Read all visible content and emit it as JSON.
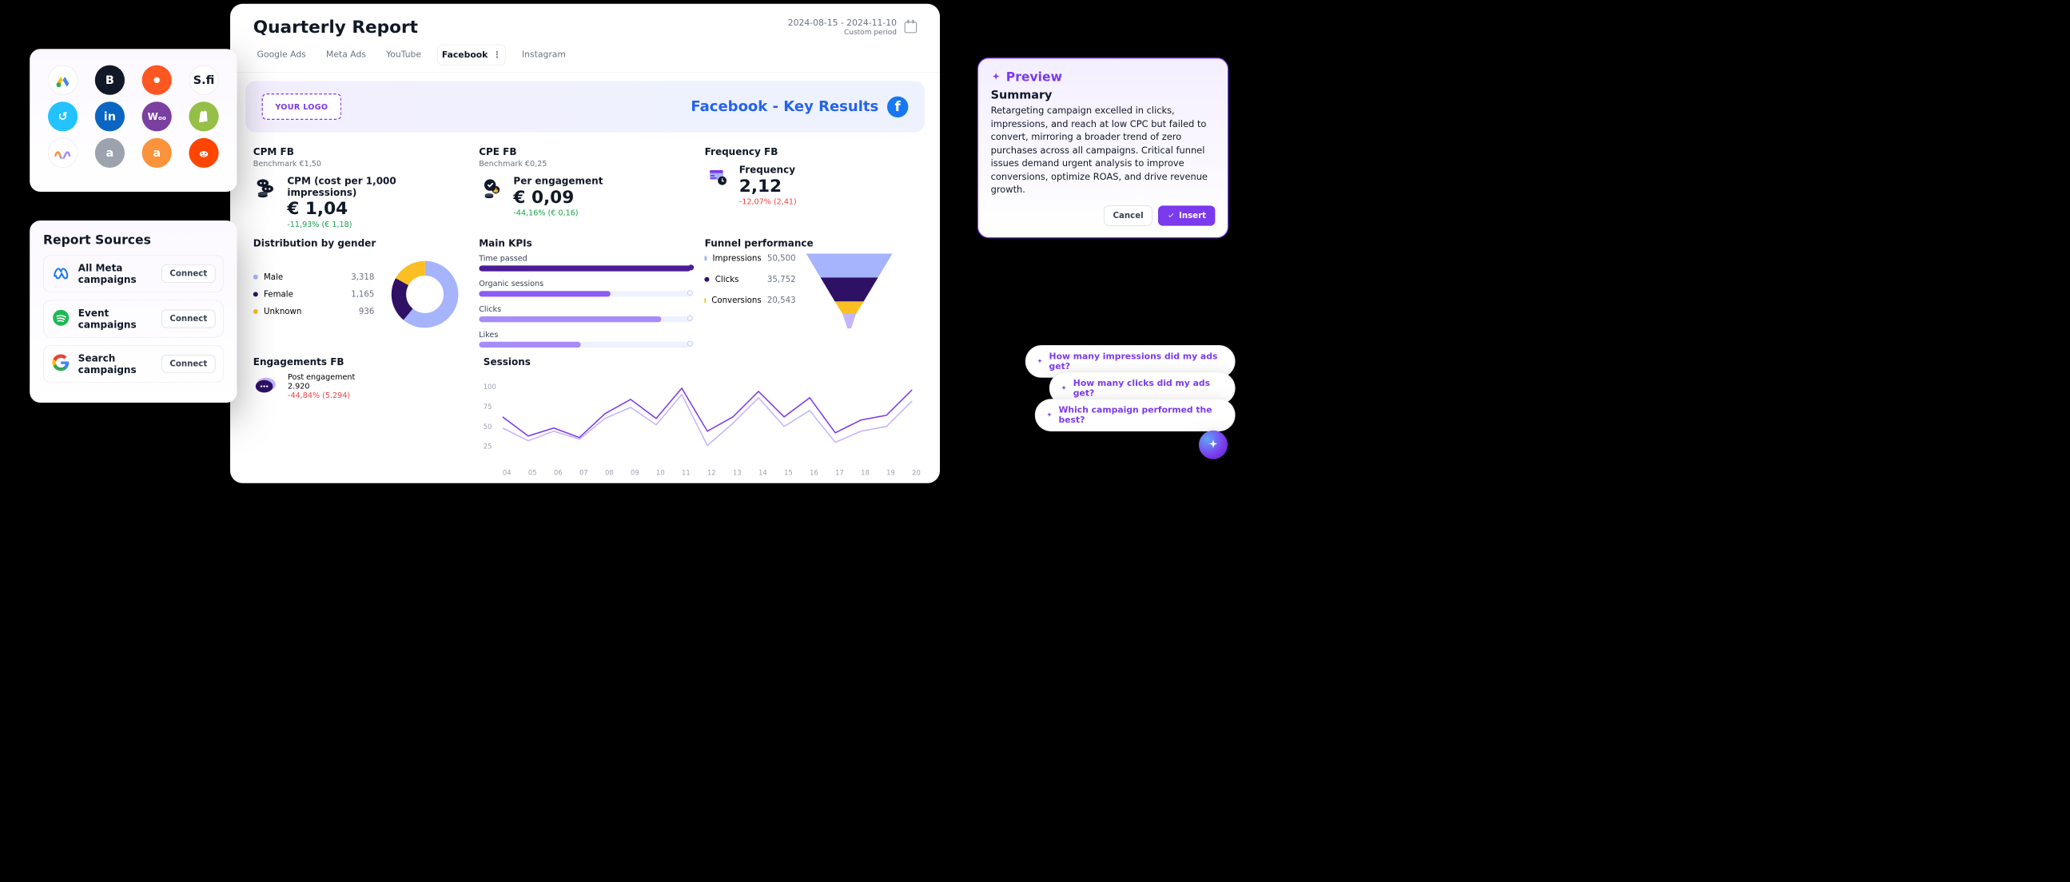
{
  "main": {
    "title": "Quarterly Report",
    "date_range": "2024-08-15 - 2024-11-10",
    "period_label": "Custom period",
    "tabs": [
      {
        "label": "Google Ads",
        "active": false
      },
      {
        "label": "Meta Ads",
        "active": false
      },
      {
        "label": "YouTube",
        "active": false
      },
      {
        "label": "Facebook",
        "active": true
      },
      {
        "label": "Instagram",
        "active": false
      }
    ],
    "hero": {
      "logo_placeholder": "YOUR LOGO",
      "headline": "Facebook - Key Results"
    },
    "metrics": [
      {
        "id": "cpm",
        "title": "CPM FB",
        "benchmark": "Benchmark €1,50",
        "kpi_label": "CPM (cost per 1,000 impressions)",
        "value": "€ 1,04",
        "delta": "-11,93% (€ 1,18)",
        "delta_color": "#16a34a"
      },
      {
        "id": "cpe",
        "title": "CPE FB",
        "benchmark": "Benchmark €0,25",
        "kpi_label": "Per engagement",
        "value": "€ 0,09",
        "delta": "-44,16% (€ 0,16)",
        "delta_color": "#16a34a"
      },
      {
        "id": "freq",
        "title": "Frequency FB",
        "benchmark": "",
        "kpi_label": "Frequency",
        "value": "2,12",
        "delta": "-12,07% (2,41)",
        "delta_color": "#ef4444"
      }
    ],
    "gender": {
      "title": "Distribution by gender",
      "items": [
        {
          "label": "Male",
          "value": "3,318",
          "color": "#a5b4fc",
          "pct": 61
        },
        {
          "label": "Female",
          "value": "1,165",
          "color": "#2e1065",
          "pct": 22
        },
        {
          "label": "Unknown",
          "value": "936",
          "color": "#fbbf24",
          "pct": 17
        }
      ]
    },
    "kpis": {
      "title": "Main KPIs",
      "items": [
        {
          "label": "Time passed",
          "pct": 100,
          "color": "#4c1d95",
          "tick": true
        },
        {
          "label": "Organic sessions",
          "pct": 62,
          "color": "#8b5cf6"
        },
        {
          "label": "Clicks",
          "pct": 86,
          "color": "#a78bfa"
        },
        {
          "label": "Likes",
          "pct": 48,
          "color": "#a78bfa"
        }
      ]
    },
    "funnel": {
      "title": "Funnel performance",
      "items": [
        {
          "label": "Impressions",
          "value": "50,500",
          "color": "#a5b4fc"
        },
        {
          "label": "Clicks",
          "value": "35,752",
          "color": "#2e1065"
        },
        {
          "label": "Conversions",
          "value": "20,543",
          "color": "#fbbf24"
        }
      ]
    },
    "engagement": {
      "title": "Engagements FB",
      "kpi_label": "Post engagement",
      "value": "2.920",
      "delta": "-44,84% (5.294)",
      "delta_color": "#ef4444"
    },
    "sessions": {
      "title": "Sessions",
      "ylim": [
        0,
        110
      ],
      "yticks": [
        25,
        50,
        75,
        100
      ],
      "xlabels": [
        "04",
        "05",
        "06",
        "07",
        "08",
        "09",
        "10",
        "11",
        "12",
        "13",
        "14",
        "15",
        "16",
        "17",
        "18",
        "19",
        "20"
      ],
      "series": [
        {
          "color": "#7c3aed",
          "points": [
            58,
            34,
            44,
            32,
            62,
            80,
            56,
            94,
            40,
            58,
            90,
            58,
            82,
            38,
            54,
            60,
            92
          ]
        },
        {
          "color": "#c4b5fd",
          "points": [
            44,
            28,
            40,
            30,
            56,
            70,
            48,
            86,
            22,
            50,
            82,
            46,
            66,
            26,
            40,
            46,
            78
          ]
        }
      ]
    }
  },
  "integrations": {
    "rows": [
      [
        {
          "bg": "#ffffff",
          "border": "#e5e7eb",
          "txt": "",
          "svg": "gads"
        },
        {
          "bg": "#111827",
          "txt": "B"
        },
        {
          "bg": "#ff5722",
          "txt": "",
          "svg": "spark"
        },
        {
          "bg": "#ffffff",
          "border": "#e5e7eb",
          "txt": "S.fi",
          "color": "#111827"
        }
      ],
      [
        {
          "bg": "#22c3ff",
          "txt": "↺"
        },
        {
          "bg": "#0a66c2",
          "txt": "in"
        },
        {
          "bg": "#7b3fa0",
          "txt": "W",
          "sub": "oo"
        },
        {
          "bg": "#95bf47",
          "txt": "",
          "svg": "shopify"
        }
      ],
      [
        {
          "bg": "#ffffff",
          "border": "#e5e7eb",
          "txt": "",
          "svg": "waves"
        },
        {
          "bg": "#9ca3af",
          "txt": "a"
        },
        {
          "bg": "#fb923c",
          "txt": "a"
        },
        {
          "bg": "#ff4500",
          "txt": "",
          "svg": "reddit"
        }
      ]
    ]
  },
  "sources": {
    "title": "Report Sources",
    "items": [
      {
        "name": "All Meta campaigns",
        "icon": "meta",
        "btn": "Connect"
      },
      {
        "name": "Event campaigns",
        "icon": "spotify",
        "btn": "Connect"
      },
      {
        "name": "Search campaigns",
        "icon": "google",
        "btn": "Connect"
      }
    ]
  },
  "preview": {
    "title": "Preview",
    "heading": "Summary",
    "body": "Retargeting campaign excelled in clicks, impressions, and reach at low CPC but failed to convert, mirroring a broader trend of zero purchases across all campaigns. Critical funnel issues demand urgent analysis to improve conversions, optimize ROAS, and drive revenue growth.",
    "cancel": "Cancel",
    "insert": "Insert"
  },
  "pills": [
    "How many impressions did my ads get?",
    "How many clicks did my ads get?",
    "Which campaign performed the best?"
  ]
}
